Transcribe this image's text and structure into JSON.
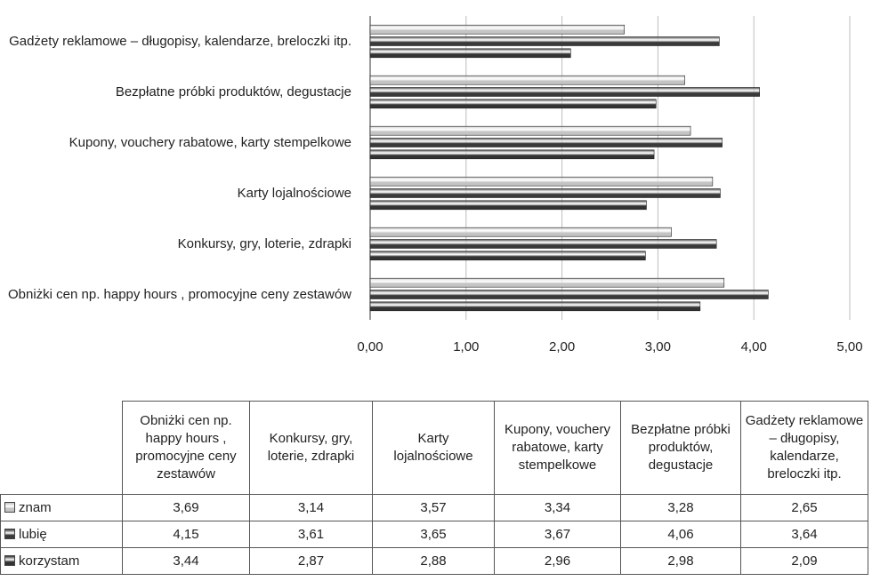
{
  "chart_data": {
    "type": "bar",
    "orientation": "horizontal",
    "categories": [
      "Obniżki cen np. happy hours , promocyjne ceny zestawów",
      "Konkursy, gry, loterie, zdrapki",
      "Karty lojalnościowe",
      "Kupony, vouchery rabatowe, karty stempelkowe",
      "Bezpłatne próbki produktów, degustacje",
      "Gadżety reklamowe – długopisy, kalendarze, breloczki itp."
    ],
    "series": [
      {
        "name": "znam",
        "color": "#c4c4c4",
        "values": [
          3.69,
          3.14,
          3.57,
          3.34,
          3.28,
          2.65
        ],
        "value_labels": [
          "3,69",
          "3,14",
          "3,57",
          "3,34",
          "3,28",
          "2,65"
        ]
      },
      {
        "name": "lubię",
        "color": "#3a3a3a",
        "values": [
          4.15,
          3.61,
          3.65,
          3.67,
          4.06,
          3.64
        ],
        "value_labels": [
          "4,15",
          "3,61",
          "3,65",
          "3,67",
          "4,06",
          "3,64"
        ]
      },
      {
        "name": "korzystam",
        "color": "#333333",
        "values": [
          3.44,
          2.87,
          2.88,
          2.96,
          2.98,
          2.09
        ],
        "value_labels": [
          "3,44",
          "2,87",
          "2,88",
          "2,96",
          "2,98",
          "2,09"
        ]
      }
    ],
    "xlim": [
      0,
      5
    ],
    "xticks": [
      {
        "value": 0,
        "label": "0,00"
      },
      {
        "value": 1,
        "label": "1,00"
      },
      {
        "value": 2,
        "label": "2,00"
      },
      {
        "value": 3,
        "label": "3,00"
      },
      {
        "value": 4,
        "label": "4,00"
      },
      {
        "value": 5,
        "label": "5,00"
      }
    ],
    "grid": true,
    "data_table": true
  }
}
